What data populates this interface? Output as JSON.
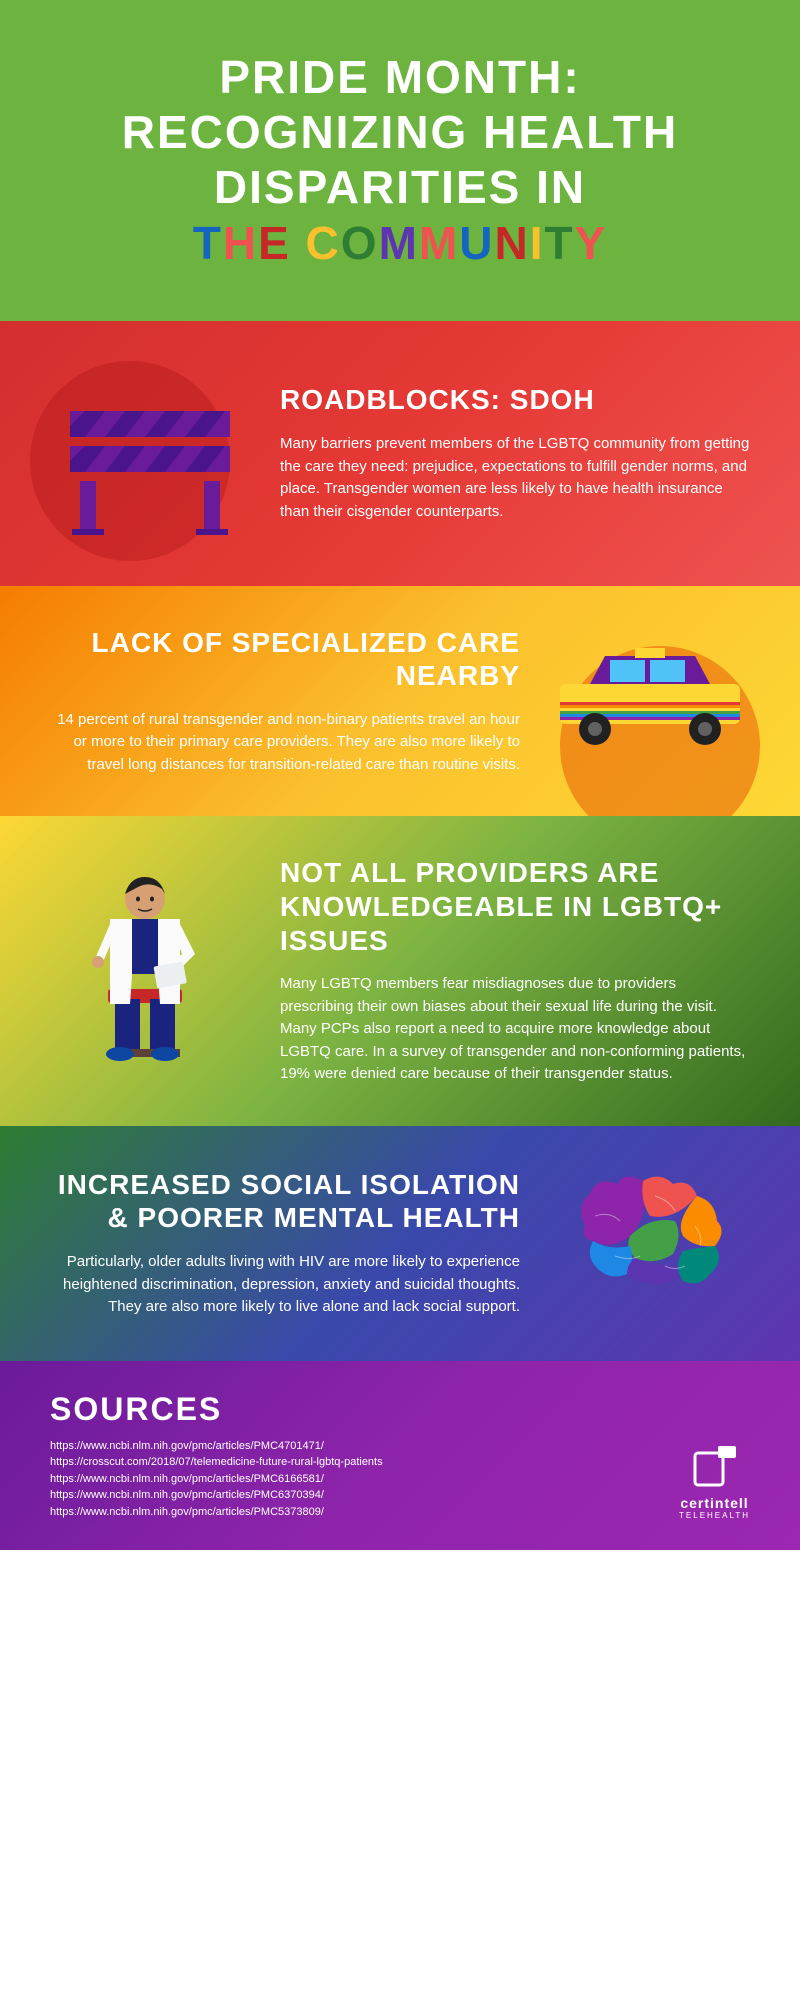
{
  "header": {
    "line1": "PRIDE MONTH:",
    "line2": "RECOGNIZING HEALTH",
    "line3": "DISPARITIES IN",
    "rainbow_words": [
      {
        "text": "T",
        "color": "#1565c0"
      },
      {
        "text": "H",
        "color": "#ef5350"
      },
      {
        "text": "E",
        "color": "#c62828"
      },
      {
        "text": " ",
        "color": "#fff"
      },
      {
        "text": "C",
        "color": "#fbc02d"
      },
      {
        "text": "O",
        "color": "#2e7d32"
      },
      {
        "text": "M",
        "color": "#5e35b1"
      },
      {
        "text": "M",
        "color": "#ef5350"
      },
      {
        "text": "U",
        "color": "#1565c0"
      },
      {
        "text": "N",
        "color": "#c62828"
      },
      {
        "text": "I",
        "color": "#fbc02d"
      },
      {
        "text": "T",
        "color": "#2e7d32"
      },
      {
        "text": "Y",
        "color": "#ef5350"
      }
    ]
  },
  "sections": {
    "s1": {
      "title": "ROADBLOCKS: SDOH",
      "body": "Many barriers prevent members of the LGBTQ community from getting the care they need: prejudice, expectations to fulfill gender norms, and place. Transgender women are less likely to have health insurance than their cisgender counterparts."
    },
    "s2": {
      "title": "LACK OF SPECIALIZED CARE NEARBY",
      "body": "14 percent of rural transgender and non-binary patients travel an hour or more to their primary care providers. They are also more likely to travel long distances for transition-related care than routine visits."
    },
    "s3": {
      "title": "NOT ALL PROVIDERS ARE KNOWLEDGEABLE IN LGBTQ+ ISSUES",
      "body": "Many LGBTQ members fear misdiagnoses due to providers prescribing their own biases about their sexual life during the visit. Many PCPs also report a need to acquire more knowledge about LGBTQ care. In a survey of transgender and non-conforming patients, 19% were denied care because of their transgender status."
    },
    "s4": {
      "title": "INCREASED SOCIAL ISOLATION & POORER MENTAL HEALTH",
      "body": "Particularly, older adults living with HIV are more likely to experience heightened discrimination, depression, anxiety and suicidal thoughts. They are also more likely to live alone and lack social support."
    }
  },
  "sources": {
    "title": "SOURCES",
    "items": [
      "https://www.ncbi.nlm.nih.gov/pmc/articles/PMC4701471/",
      "https://crosscut.com/2018/07/telemedicine-future-rural-lgbtq-patients",
      "https://www.ncbi.nlm.nih.gov/pmc/articles/PMC6166581/",
      "https://www.ncbi.nlm.nih.gov/pmc/articles/PMC6370394/",
      "https://www.ncbi.nlm.nih.gov/pmc/articles/PMC5373809/"
    ]
  },
  "logo": {
    "name": "certintell",
    "sub": "TELEHEALTH"
  },
  "colors": {
    "barrier_stripe": "#6a1b9a",
    "barrier_post": "#6a1b9a",
    "taxi_body": "#fdd835",
    "taxi_stripes": [
      "#e53935",
      "#fb8c00",
      "#fdd835",
      "#43a047",
      "#1e88e5",
      "#8e24aa"
    ],
    "brain_colors": [
      "#8e24aa",
      "#ef5350",
      "#fb8c00",
      "#43a047",
      "#00897b",
      "#1e88e5",
      "#5e35b1"
    ]
  }
}
